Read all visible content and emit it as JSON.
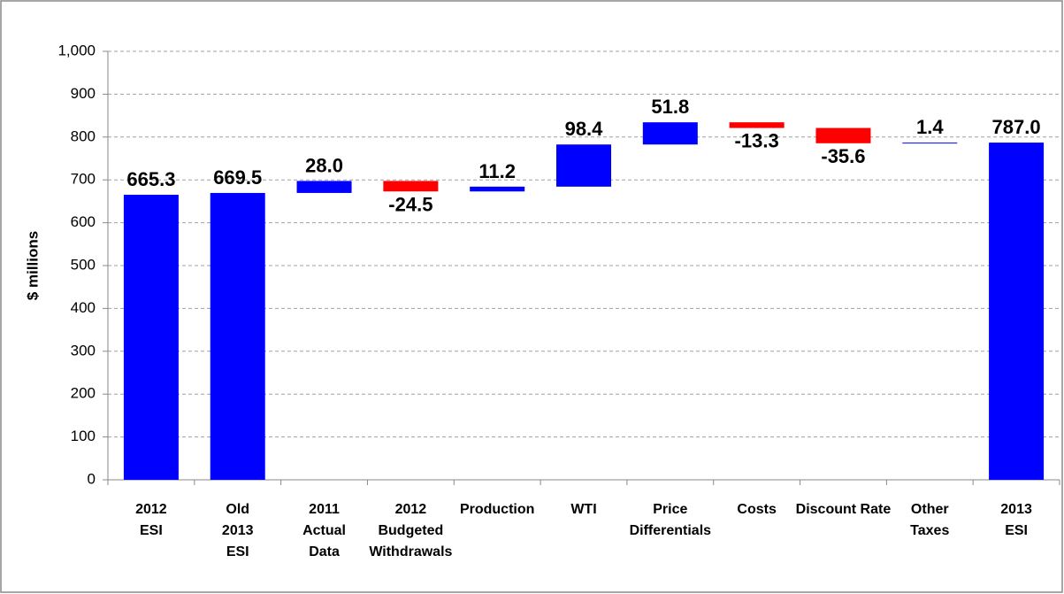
{
  "chart_data": {
    "type": "waterfall",
    "y_label": "$ millions",
    "categories": [
      "2012\nESI",
      "Old\n2013\nESI",
      "2011\nActual\nData",
      "2012\nBudgeted\nWithdrawals",
      "Production",
      "WTI",
      "Price\nDifferentials",
      "Costs",
      "Discount Rate",
      "Other\nTaxes",
      "2013\nESI"
    ],
    "measure": [
      "absolute",
      "absolute",
      "relative",
      "relative",
      "relative",
      "relative",
      "relative",
      "relative",
      "relative",
      "relative",
      "absolute"
    ],
    "values": [
      665.3,
      669.5,
      28.0,
      -24.5,
      11.2,
      98.4,
      51.8,
      -13.3,
      -35.6,
      1.4,
      787.0
    ],
    "value_labels": [
      "665.3",
      "669.5",
      "28.0",
      "-24.5",
      "11.2",
      "98.4",
      "51.8",
      "-13.3",
      "-35.6",
      "1.4",
      "787.0"
    ],
    "colors": {
      "increase": "#0000ff",
      "decrease": "#ff0000",
      "total": "#0000ff"
    },
    "ylim": [
      0,
      1000
    ],
    "yticks": [
      0,
      100,
      200,
      300,
      400,
      500,
      600,
      700,
      800,
      900,
      {
        "value": 1000,
        "label": "1,000"
      }
    ],
    "grid": true
  }
}
